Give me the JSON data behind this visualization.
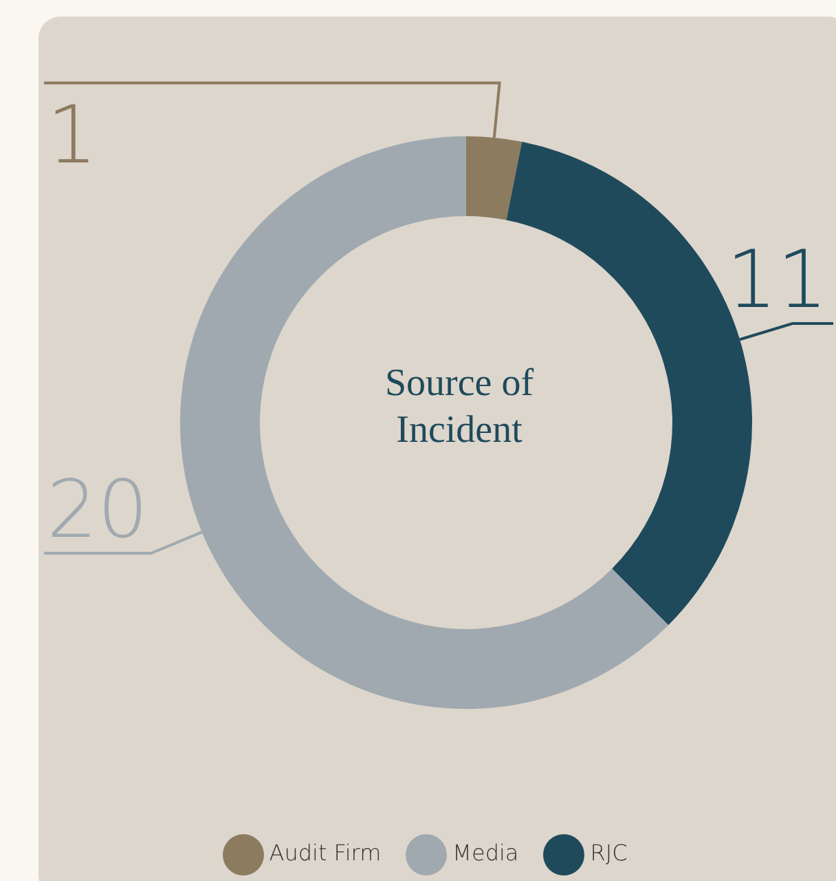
{
  "chart_data": {
    "type": "donut",
    "title": "Source of Incident",
    "categories": [
      "Audit Firm",
      "RJC",
      "Media"
    ],
    "values": [
      1,
      11,
      20
    ],
    "colors": [
      "#8c7b5f",
      "#1f4a5c",
      "#a0a9b0"
    ],
    "data_labels": true,
    "legend": "bottom"
  }
}
